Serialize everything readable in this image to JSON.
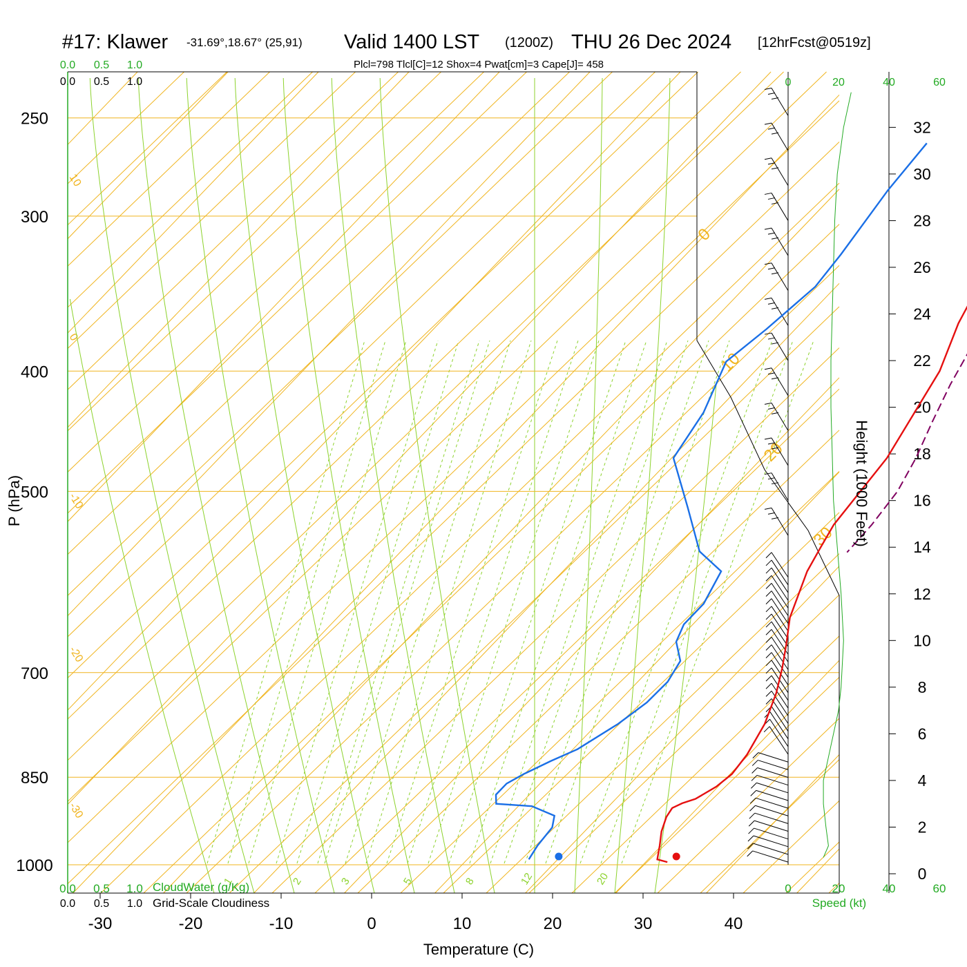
{
  "header": {
    "station": "#17: Klawer",
    "coords": "-31.69°,18.67° (25,91)",
    "valid": "Valid 1400 LST",
    "utc": "(1200Z)",
    "date": "THU 26 Dec 2024",
    "fcst": "[12hrFcst@0519z]",
    "params": "Plcl=798 Tlcl[C]=12 Shox=4 Pwat[cm]=3 Cape[J]= 458"
  },
  "colors": {
    "temperature": "#e51010",
    "dewpoint": "#1a6fe6",
    "parcel": "#800060",
    "isotherm": "#f0b41e",
    "mixing_ratio": "#8cd22c",
    "cloud": "#22aa22",
    "params_text": "#a0004a"
  },
  "chart_data": {
    "type": "line",
    "subtype": "skew-T log-P sounding",
    "xlabel": "Temperature (C)",
    "ylabel": "P (hPa)",
    "xticks": [
      "-30",
      "-20",
      "-10",
      "0",
      "10",
      "20",
      "30",
      "40"
    ],
    "pressure_levels": [
      {
        "p": 250,
        "label": "250"
      },
      {
        "p": 300,
        "label": "300"
      },
      {
        "p": 400,
        "label": "400"
      },
      {
        "p": 500,
        "label": "500"
      },
      {
        "p": 700,
        "label": "700"
      },
      {
        "p": 850,
        "label": "850"
      },
      {
        "p": 1000,
        "label": "1000"
      }
    ],
    "isotherm_labels": [
      "-10",
      "0",
      "10",
      "20",
      "30"
    ],
    "left_isotherm_labels": [
      "10",
      "0",
      "-10",
      "-20",
      "-30"
    ],
    "mixing_ratio_lines": [
      "1",
      "2",
      "3",
      "5",
      "8",
      "12",
      "20"
    ],
    "series": [
      {
        "key": "temperature",
        "points": [
          [
            2.3,
            262
          ],
          [
            2.7,
            285
          ],
          [
            4.8,
            330
          ],
          [
            7.4,
            366
          ],
          [
            10.4,
            400
          ],
          [
            13.8,
            470
          ],
          [
            15,
            532
          ],
          [
            16,
            556
          ],
          [
            17,
            580
          ],
          [
            20,
            632
          ],
          [
            22.5,
            665
          ],
          [
            24.5,
            694
          ],
          [
            26.5,
            727
          ],
          [
            28.5,
            770
          ],
          [
            29.8,
            815
          ],
          [
            30.2,
            845
          ],
          [
            29.8,
            865
          ],
          [
            28.8,
            885
          ],
          [
            27.8,
            892
          ],
          [
            27.2,
            900
          ],
          [
            27.5,
            915
          ],
          [
            28.5,
            940
          ],
          [
            29.8,
            965
          ],
          [
            31,
            990
          ],
          [
            32.4,
            995
          ]
        ]
      },
      {
        "key": "dewpoint",
        "points": [
          [
            -15.2,
            262
          ],
          [
            -14.5,
            286
          ],
          [
            -12.9,
            322
          ],
          [
            -12.3,
            342
          ],
          [
            -13.2,
            370
          ],
          [
            -14.2,
            393
          ],
          [
            -11.3,
            432
          ],
          [
            -9.8,
            470
          ],
          [
            -3,
            515
          ],
          [
            3,
            559
          ],
          [
            7.5,
            580
          ],
          [
            9,
            616
          ],
          [
            9,
            640
          ],
          [
            10,
            661
          ],
          [
            12.5,
            685
          ],
          [
            13.3,
            712
          ],
          [
            13.2,
            740
          ],
          [
            12.3,
            770
          ],
          [
            10.5,
            807
          ],
          [
            8.8,
            825
          ],
          [
            7.2,
            845
          ],
          [
            6.3,
            860
          ],
          [
            6.3,
            878
          ],
          [
            7.3,
            893
          ],
          [
            11.5,
            897
          ],
          [
            15,
            913
          ],
          [
            16,
            933
          ],
          [
            16.3,
            965
          ],
          [
            16.8,
            990
          ]
        ]
      },
      {
        "key": "parcel",
        "dashed": true,
        "points": [
          [
            4.3,
            279
          ],
          [
            7,
            310
          ],
          [
            8.9,
            342
          ],
          [
            11.2,
            380
          ],
          [
            13,
            410
          ],
          [
            15,
            440
          ],
          [
            17,
            470
          ],
          [
            18.5,
            500
          ],
          [
            19.2,
            532
          ],
          [
            19.4,
            560
          ]
        ]
      }
    ],
    "surface_temperature": 32.8,
    "surface_dewpoint": 19.8,
    "wind_panel": {
      "speed_ticks": [
        "0",
        "20",
        "40",
        "60"
      ],
      "speed_label": "Speed (kt)",
      "height_label": "Height (1000 Feet)",
      "height_ticks": [
        "0",
        "2",
        "4",
        "6",
        "8",
        "10",
        "12",
        "14",
        "16",
        "18",
        "20",
        "22",
        "24",
        "26",
        "28",
        "30",
        "32"
      ],
      "speed_profile_kt": [
        [
          14,
          0.7
        ],
        [
          16,
          1.2
        ],
        [
          15,
          2
        ],
        [
          14,
          3
        ],
        [
          14,
          4
        ],
        [
          16,
          5
        ],
        [
          18,
          6
        ],
        [
          20,
          7
        ],
        [
          21,
          8
        ],
        [
          21.5,
          9
        ],
        [
          22,
          10
        ],
        [
          21.5,
          11
        ],
        [
          21,
          12
        ],
        [
          19.5,
          14
        ],
        [
          18,
          16
        ],
        [
          17.5,
          18
        ],
        [
          17,
          20
        ],
        [
          17,
          22
        ],
        [
          17.5,
          24
        ],
        [
          18,
          26
        ],
        [
          18.5,
          28
        ],
        [
          19.5,
          30
        ],
        [
          22,
          32
        ],
        [
          25,
          33.5
        ]
      ],
      "max_speed_kt": [
        [
          44,
          0.5
        ],
        [
          41,
          2
        ],
        [
          40,
          4
        ],
        [
          43,
          6
        ],
        [
          46,
          8
        ],
        [
          46,
          10
        ],
        [
          46,
          12
        ],
        [
          49,
          13
        ],
        [
          47,
          15
        ],
        [
          43,
          17.5
        ],
        [
          39,
          20
        ],
        [
          36,
          22
        ],
        [
          36,
          23.8
        ],
        [
          36,
          32.5
        ]
      ]
    },
    "cloud_panel": {
      "ticks": [
        "0.0",
        "0.5",
        "1.0"
      ],
      "cloudwater_label": "CloudWater (g/Kg)",
      "cloudiness_label": "Grid-Scale Cloudiness"
    }
  }
}
